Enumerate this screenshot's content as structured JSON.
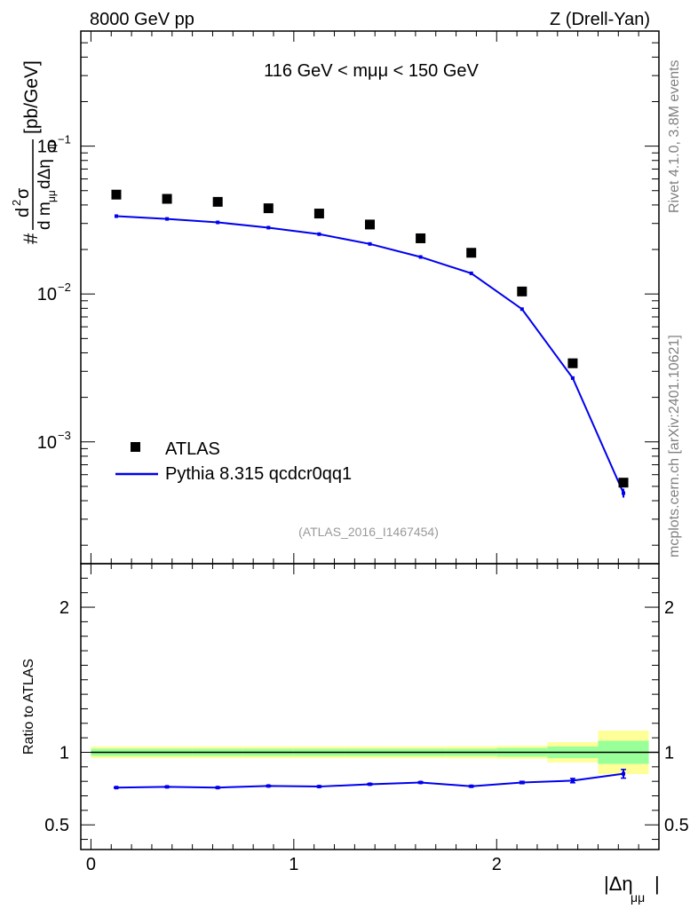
{
  "header": {
    "energy": "8000 GeV pp",
    "process": "Z (Drell-Yan)"
  },
  "side_text": {
    "rivet": "Rivet 4.1.0,  3.8M events",
    "mcplots": "mcplots.cern.ch [arXiv:2401.10621]"
  },
  "chart_data": [
    {
      "type": "scatter",
      "panel": "main",
      "title": "116 GeV < mμμ < 150 GeV",
      "reference": "(ATLAS_2016_I1467454)",
      "ylabel": "# d²σ / d mμμ dΔημμ [pb/GeV]",
      "ylabel_parts": {
        "hash": "#",
        "num_d": "d",
        "num_2": "2",
        "num_sigma": "σ",
        "den_dm": "d m",
        "den_mu1": "μμ",
        "den_deta": " dΔη",
        "den_mu2": "μμ",
        "unit": "[pb/GeV]"
      },
      "yscale": "log",
      "ylim": [
        0.00015,
        0.6
      ],
      "xlim": [
        -0.05,
        2.8
      ],
      "yticks": [
        {
          "value": 0.001,
          "base": "10",
          "exp": "−3"
        },
        {
          "value": 0.01,
          "base": "10",
          "exp": "−2"
        },
        {
          "value": 0.1,
          "base": "10",
          "exp": "−1"
        }
      ],
      "legend_position": "lower-left",
      "series": [
        {
          "name": "ATLAS",
          "color": "#000000",
          "marker": "square",
          "x": [
            0.125,
            0.375,
            0.625,
            0.875,
            1.125,
            1.375,
            1.625,
            1.875,
            2.125,
            2.375,
            2.625
          ],
          "xerr": [
            0.125,
            0.125,
            0.125,
            0.125,
            0.125,
            0.125,
            0.125,
            0.125,
            0.125,
            0.125,
            0.125
          ],
          "y": [
            0.047,
            0.044,
            0.042,
            0.038,
            0.035,
            0.0295,
            0.0238,
            0.019,
            0.0104,
            0.0034,
            0.00053
          ]
        },
        {
          "name": "Pythia 8.315 qcdcr0qq1",
          "color": "#0000ee",
          "marker": "line",
          "x": [
            0.125,
            0.375,
            0.625,
            0.875,
            1.125,
            1.375,
            1.625,
            1.875,
            2.125,
            2.375,
            2.625
          ],
          "y": [
            0.0336,
            0.0322,
            0.0305,
            0.0281,
            0.0254,
            0.0218,
            0.0178,
            0.0138,
            0.0079,
            0.0027,
            0.00045
          ],
          "yerr_lo": [
            0.0002,
            0.0002,
            0.0002,
            0.0002,
            0.0002,
            0.0002,
            0.0002,
            0.0002,
            0.0001,
            5e-05,
            3e-05
          ],
          "yerr_hi": [
            0.0002,
            0.0002,
            0.0002,
            0.0002,
            0.0002,
            0.0002,
            0.0002,
            0.0002,
            0.0001,
            5e-05,
            3e-05
          ]
        }
      ]
    },
    {
      "type": "line",
      "panel": "ratio",
      "ylabel": "Ratio to ATLAS",
      "xlabel": "|Δημμ|",
      "xlabel_parts": {
        "main": "|Δη",
        "sub": "μμ",
        "end": "|"
      },
      "ylim": [
        0.33,
        2.3
      ],
      "xlim": [
        -0.05,
        2.8
      ],
      "yticks": [
        {
          "value": 0.5,
          "label": "0.5"
        },
        {
          "value": 1,
          "label": "1"
        },
        {
          "value": 2,
          "label": "2"
        }
      ],
      "xticks": [
        {
          "value": 0,
          "label": "0"
        },
        {
          "value": 1,
          "label": "1"
        },
        {
          "value": 2,
          "label": "2"
        }
      ],
      "bands": {
        "bin_edges": [
          0.0,
          0.25,
          0.5,
          0.75,
          1.0,
          1.25,
          1.5,
          1.75,
          2.0,
          2.25,
          2.5,
          2.75
        ],
        "stat_lo": [
          0.975,
          0.975,
          0.975,
          0.975,
          0.975,
          0.975,
          0.975,
          0.975,
          0.97,
          0.96,
          0.92
        ],
        "stat_hi": [
          1.025,
          1.025,
          1.025,
          1.025,
          1.025,
          1.025,
          1.025,
          1.025,
          1.03,
          1.04,
          1.08
        ],
        "total_lo": [
          0.96,
          0.96,
          0.96,
          0.96,
          0.96,
          0.96,
          0.96,
          0.958,
          0.955,
          0.93,
          0.85
        ],
        "total_hi": [
          1.04,
          1.04,
          1.04,
          1.04,
          1.04,
          1.04,
          1.04,
          1.042,
          1.045,
          1.07,
          1.15
        ],
        "stat_color": "#99ff99",
        "total_color": "#ffff99"
      },
      "series": [
        {
          "name": "Pythia 8.315 qcdcr0qq1",
          "color": "#0000ee",
          "x": [
            0.125,
            0.375,
            0.625,
            0.875,
            1.125,
            1.375,
            1.625,
            1.875,
            2.125,
            2.375,
            2.625
          ],
          "y": [
            0.757,
            0.762,
            0.757,
            0.768,
            0.764,
            0.78,
            0.792,
            0.766,
            0.792,
            0.805,
            0.852
          ],
          "yerr": [
            0.004,
            0.004,
            0.004,
            0.004,
            0.004,
            0.005,
            0.005,
            0.005,
            0.008,
            0.015,
            0.03
          ]
        }
      ]
    }
  ]
}
